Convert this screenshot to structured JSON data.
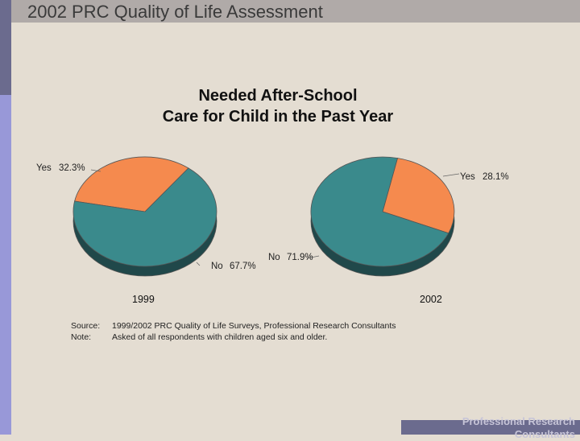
{
  "header": {
    "title": "2002 PRC Quality of Life Assessment"
  },
  "chart_title_lines": [
    "Needed After-School",
    "Care for Child in the Past Year"
  ],
  "chart_data": [
    {
      "type": "pie",
      "year": "1999",
      "slices": [
        {
          "label": "Yes",
          "value": 32.3,
          "display": "32.3%",
          "color": "#f58a4e"
        },
        {
          "label": "No",
          "value": 67.7,
          "display": "67.7%",
          "color": "#3a8a8c"
        }
      ]
    },
    {
      "type": "pie",
      "year": "2002",
      "slices": [
        {
          "label": "Yes",
          "value": 28.1,
          "display": "28.1%",
          "color": "#f58a4e"
        },
        {
          "label": "No",
          "value": 71.9,
          "display": "71.9%",
          "color": "#3a8a8c"
        }
      ]
    }
  ],
  "notes": {
    "source_key": "Source:",
    "source_text": "1999/2002 PRC Quality of Life Surveys, Professional Research Consultants",
    "note_key": "Note:",
    "note_text": "Asked of all respondents with children aged six and older."
  },
  "footer": {
    "text": "Professional Research Consultants"
  },
  "colors": {
    "side_dark": "#6b6b8e",
    "side_light": "#9898d8",
    "background": "#e4ddd2",
    "pie_shadow": "#20484a"
  }
}
